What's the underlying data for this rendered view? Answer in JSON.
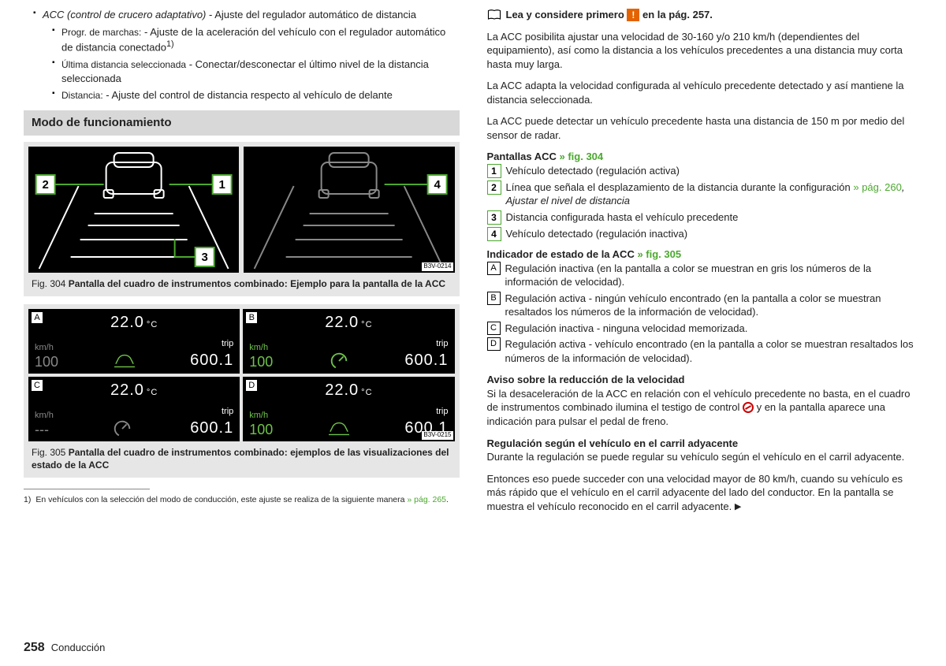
{
  "left": {
    "bullets": [
      {
        "name": "ACC (control de crucero adaptativo)",
        "desc": " - Ajuste del regulador automático de distancia",
        "sub": [
          {
            "name": "Progr. de marchas:",
            "desc": " - Ajuste de la aceleración del vehículo con el regulador automático de distancia conectado",
            "sup": "1)"
          },
          {
            "name": "Última distancia seleccionada",
            "desc": " - Conectar/desconectar el último nivel de la distancia seleccionada"
          },
          {
            "name": "Distancia:",
            "desc": " - Ajuste del control de distancia respecto al vehículo de delante"
          }
        ]
      }
    ],
    "section_title": "Modo de funcionamiento",
    "fig304": {
      "code": "B3V-0214",
      "labels": [
        "2",
        "1",
        "3",
        "4"
      ],
      "caption_prefix": "Fig. 304 ",
      "caption": "Pantalla del cuadro de instrumentos combinado: Ejemplo para la pantalla de la ACC"
    },
    "dashboards": {
      "temp": "22.0",
      "temp_unit": "°C",
      "trip_label": "trip",
      "trip_val": "600.1",
      "kmh": "km/h",
      "panels": [
        {
          "tag": "A",
          "speed": "100",
          "speed_color": "#888",
          "gauge_color": "#6fc24a",
          "car": true
        },
        {
          "tag": "B",
          "speed": "100",
          "speed_color": "#6fc24a",
          "gauge_color": "#6fc24a",
          "car": false
        },
        {
          "tag": "C",
          "speed": "---",
          "speed_color": "#888",
          "gauge_color": "#888",
          "car": false
        },
        {
          "tag": "D",
          "speed": "100",
          "speed_color": "#6fc24a",
          "gauge_color": "#6fc24a",
          "car": true
        }
      ],
      "code": "B3V-0215",
      "caption_prefix": "Fig. 305 ",
      "caption": "Pantalla del cuadro de instrumentos combinado: ejemplos de las visualizaciones del estado de la ACC"
    },
    "footnote": {
      "num": "1)",
      "text": "En vehículos con la selección del modo de conducción, este ajuste se realiza de la siguiente manera ",
      "link": "» pág. 265"
    }
  },
  "right": {
    "ref_prefix": "Lea y considere primero ",
    "ref_suffix": " en la pág. 257.",
    "p1": "La ACC posibilita ajustar una velocidad de 30-160 y/o 210 km/h (dependientes del equipamiento), así como la distancia a los vehículos precedentes a una distancia muy corta hasta muy larga.",
    "p2": "La ACC adapta la velocidad configurada al vehículo precedente detectado y así mantiene la distancia seleccionada.",
    "p3": "La ACC puede detectar un vehículo precedente hasta una distancia de 150 m por medio del sensor de radar.",
    "pantallas_title": "Pantallas ACC ",
    "pantallas_ref": "» fig. 304",
    "pantallas_items": [
      {
        "n": "1",
        "t": "Vehículo detectado (regulación activa)"
      },
      {
        "n": "2",
        "t1": "Línea que señala el desplazamiento de la distancia durante la configuración ",
        "link": "» pág. 260",
        "t2": ", Ajustar el nivel de distancia",
        "italic2": true
      },
      {
        "n": "3",
        "t": "Distancia configurada hasta el vehículo precedente"
      },
      {
        "n": "4",
        "t": "Vehículo detectado (regulación inactiva)"
      }
    ],
    "indicador_title": "Indicador de estado de la ACC ",
    "indicador_ref": "» fig. 305",
    "indicador_items": [
      {
        "l": "A",
        "t": "Regulación inactiva (en la pantalla a color se muestran en gris los números de la información de velocidad)."
      },
      {
        "l": "B",
        "t": "Regulación activa - ningún vehículo encontrado (en la pantalla a color se muestran resaltados los números de la información de velocidad)."
      },
      {
        "l": "C",
        "t": "Regulación inactiva - ninguna velocidad memorizada."
      },
      {
        "l": "D",
        "t": "Regulación activa - vehículo encontrado (en la pantalla a color se muestran resaltados los números de la información de velocidad)."
      }
    ],
    "aviso_title": "Aviso sobre la reducción de la velocidad",
    "aviso_text1": "Si la desaceleración de la ACC en relación con el vehículo precedente no basta, en el cuadro de instrumentos combinado ilumina el testigo de control ",
    "aviso_text2": " y en la pantalla aparece una indicación para pulsar el pedal de freno.",
    "reg_title": "Regulación según el vehículo en el carril adyacente",
    "reg_text": "Durante la regulación se puede regular su vehículo según el vehículo en el carril adyacente.",
    "reg_text2": "Entonces eso puede succeder con una velocidad mayor de 80 km/h, cuando su vehículo es más rápido que el vehículo en el carril adyacente del lado del conductor. En la pantalla se muestra el vehículo reconocido en el carril adyacente."
  },
  "footer": {
    "page": "258",
    "section": "Conducción"
  }
}
